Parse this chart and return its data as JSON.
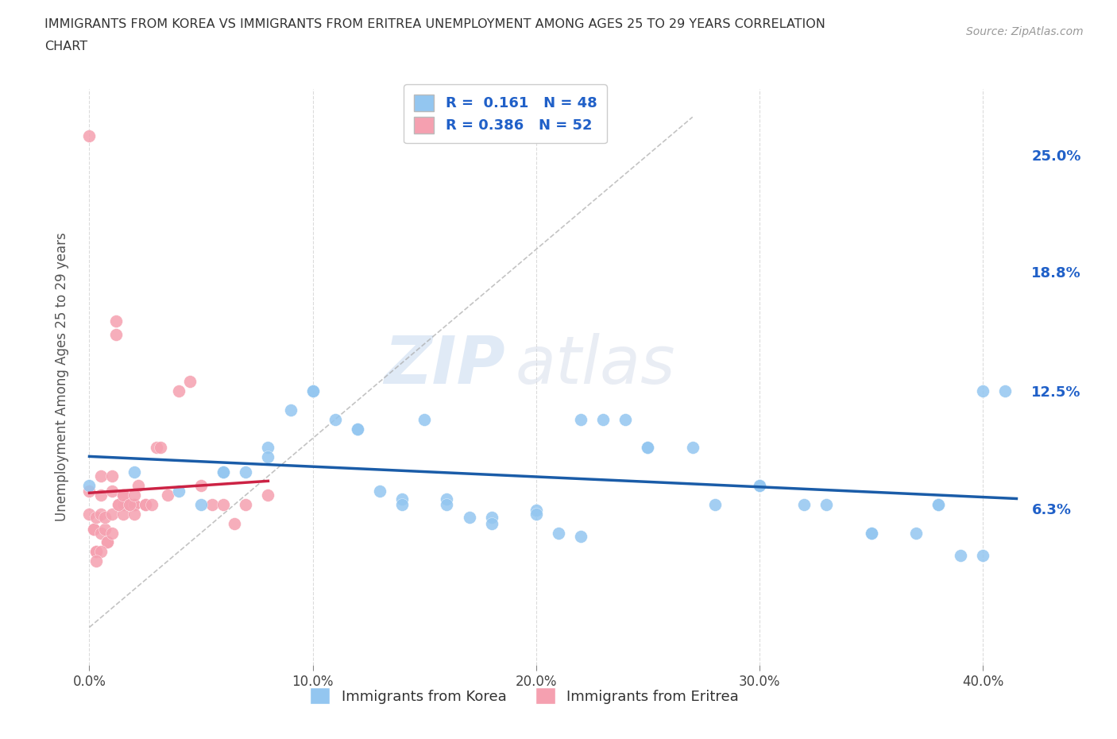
{
  "title_line1": "IMMIGRANTS FROM KOREA VS IMMIGRANTS FROM ERITREA UNEMPLOYMENT AMONG AGES 25 TO 29 YEARS CORRELATION",
  "title_line2": "CHART",
  "source": "Source: ZipAtlas.com",
  "xlabel_ticks": [
    "0.0%",
    "10.0%",
    "20.0%",
    "30.0%",
    "40.0%"
  ],
  "xlabel_tick_vals": [
    0.0,
    0.1,
    0.2,
    0.3,
    0.4
  ],
  "ylabel_ticks": [
    "6.3%",
    "12.5%",
    "18.8%",
    "25.0%"
  ],
  "ylabel_tick_vals": [
    0.063,
    0.125,
    0.188,
    0.25
  ],
  "ylabel_label": "Unemployment Among Ages 25 to 29 years",
  "xlim": [
    -0.005,
    0.42
  ],
  "ylim": [
    -0.02,
    0.285
  ],
  "korea_color": "#93c6f0",
  "eritrea_color": "#f5a0b0",
  "korea_line_color": "#1a5ca8",
  "eritrea_line_color": "#cc2244",
  "korea_R": 0.161,
  "korea_N": 48,
  "eritrea_R": 0.386,
  "eritrea_N": 52,
  "watermark_zip": "ZIP",
  "watermark_atlas": "atlas",
  "background_color": "#ffffff",
  "grid_color": "#cccccc",
  "korea_scatter_x": [
    0.0,
    0.02,
    0.04,
    0.06,
    0.07,
    0.08,
    0.09,
    0.1,
    0.11,
    0.12,
    0.13,
    0.14,
    0.15,
    0.16,
    0.17,
    0.18,
    0.2,
    0.21,
    0.22,
    0.23,
    0.24,
    0.25,
    0.27,
    0.3,
    0.33,
    0.35,
    0.38,
    0.4,
    0.05,
    0.06,
    0.08,
    0.1,
    0.12,
    0.14,
    0.16,
    0.18,
    0.2,
    0.22,
    0.25,
    0.28,
    0.3,
    0.32,
    0.35,
    0.37,
    0.38,
    0.39,
    0.4,
    0.41
  ],
  "korea_scatter_y": [
    0.075,
    0.082,
    0.072,
    0.082,
    0.082,
    0.095,
    0.115,
    0.125,
    0.11,
    0.105,
    0.072,
    0.068,
    0.11,
    0.068,
    0.058,
    0.058,
    0.062,
    0.05,
    0.048,
    0.11,
    0.11,
    0.095,
    0.095,
    0.075,
    0.065,
    0.05,
    0.065,
    0.125,
    0.065,
    0.082,
    0.09,
    0.125,
    0.105,
    0.065,
    0.065,
    0.055,
    0.06,
    0.11,
    0.095,
    0.065,
    0.075,
    0.065,
    0.05,
    0.05,
    0.065,
    0.038,
    0.038,
    0.125
  ],
  "eritrea_scatter_x": [
    0.0,
    0.0,
    0.0,
    0.002,
    0.002,
    0.003,
    0.003,
    0.005,
    0.005,
    0.005,
    0.007,
    0.007,
    0.008,
    0.008,
    0.01,
    0.01,
    0.01,
    0.012,
    0.012,
    0.013,
    0.015,
    0.015,
    0.015,
    0.018,
    0.018,
    0.02,
    0.02,
    0.02,
    0.022,
    0.025,
    0.025,
    0.028,
    0.03,
    0.032,
    0.035,
    0.04,
    0.045,
    0.05,
    0.055,
    0.06,
    0.065,
    0.07,
    0.08,
    0.005,
    0.01,
    0.013,
    0.015,
    0.018,
    0.02,
    0.003,
    0.005,
    0.003
  ],
  "eritrea_scatter_y": [
    0.26,
    0.072,
    0.06,
    0.052,
    0.052,
    0.058,
    0.04,
    0.07,
    0.06,
    0.05,
    0.052,
    0.058,
    0.045,
    0.045,
    0.072,
    0.06,
    0.05,
    0.162,
    0.155,
    0.065,
    0.07,
    0.065,
    0.06,
    0.065,
    0.065,
    0.065,
    0.065,
    0.06,
    0.075,
    0.065,
    0.065,
    0.065,
    0.095,
    0.095,
    0.07,
    0.125,
    0.13,
    0.075,
    0.065,
    0.065,
    0.055,
    0.065,
    0.07,
    0.08,
    0.08,
    0.065,
    0.07,
    0.065,
    0.07,
    0.04,
    0.04,
    0.035
  ],
  "diag_line_x": [
    0.0,
    0.27
  ],
  "diag_line_y": [
    0.0,
    0.27
  ]
}
